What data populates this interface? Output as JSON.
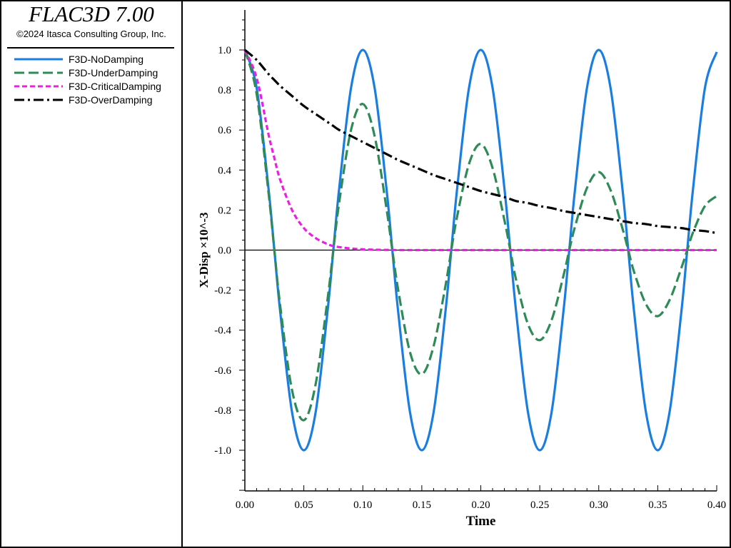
{
  "app": {
    "title": "FLAC3D 7.00",
    "copyright": "©2024 Itasca Consulting Group, Inc."
  },
  "chart_data": {
    "type": "line",
    "xlabel": "Time",
    "ylabel": "X-Disp ×10^-3",
    "xlim": [
      0,
      0.4
    ],
    "ylim": [
      -1.2,
      1.2
    ],
    "xticks": [
      "0.00",
      "0.05",
      "0.10",
      "0.15",
      "0.20",
      "0.25",
      "0.30",
      "0.35",
      "0.40"
    ],
    "yticks": [
      "1.0",
      "0.8",
      "0.6",
      "0.4",
      "0.2",
      "0.0",
      "-0.2",
      "-0.4",
      "-0.6",
      "-0.8",
      "-1.0"
    ],
    "grid": false,
    "legend_position": "left-panel",
    "x": [
      0,
      0.01,
      0.02,
      0.025,
      0.03,
      0.04,
      0.05,
      0.06,
      0.07,
      0.075,
      0.08,
      0.09,
      0.1,
      0.11,
      0.12,
      0.125,
      0.13,
      0.14,
      0.15,
      0.16,
      0.17,
      0.175,
      0.18,
      0.19,
      0.2,
      0.21,
      0.22,
      0.225,
      0.23,
      0.24,
      0.25,
      0.26,
      0.27,
      0.275,
      0.28,
      0.29,
      0.3,
      0.31,
      0.32,
      0.325,
      0.33,
      0.34,
      0.35,
      0.36,
      0.37,
      0.375,
      0.38,
      0.39,
      0.4
    ],
    "series": [
      {
        "name": "F3D-NoDamping",
        "color": "#1a7de0",
        "dash": "solid",
        "values": [
          1.0,
          0.81,
          0.31,
          0.0,
          -0.31,
          -0.81,
          -1.0,
          -0.81,
          -0.31,
          0.0,
          0.31,
          0.81,
          1.0,
          0.81,
          0.31,
          0.0,
          -0.31,
          -0.81,
          -1.0,
          -0.81,
          -0.31,
          0.0,
          0.31,
          0.81,
          1.0,
          0.81,
          0.31,
          0.0,
          -0.31,
          -0.81,
          -1.0,
          -0.81,
          -0.31,
          0.0,
          0.31,
          0.81,
          1.0,
          0.81,
          0.31,
          0.0,
          -0.31,
          -0.81,
          -1.0,
          -0.81,
          -0.31,
          0.0,
          0.31,
          0.81,
          0.99
        ]
      },
      {
        "name": "F3D-UnderDamping",
        "color": "#2e8b57",
        "dash": "long-dash",
        "values": [
          1.0,
          0.78,
          0.29,
          0.0,
          -0.28,
          -0.7,
          -0.85,
          -0.67,
          -0.25,
          0.0,
          0.24,
          0.6,
          0.73,
          0.57,
          0.21,
          0.0,
          -0.2,
          -0.51,
          -0.62,
          -0.48,
          -0.18,
          0.0,
          0.17,
          0.43,
          0.53,
          0.41,
          0.15,
          0.0,
          -0.15,
          -0.37,
          -0.45,
          -0.35,
          -0.13,
          0.0,
          0.12,
          0.31,
          0.39,
          0.3,
          0.11,
          0.0,
          -0.11,
          -0.27,
          -0.33,
          -0.25,
          -0.09,
          0.0,
          0.09,
          0.22,
          0.27
        ]
      },
      {
        "name": "F3D-CriticalDamping",
        "color": "#e820e0",
        "dash": "short-dash",
        "values": [
          1.0,
          0.86,
          0.58,
          0.46,
          0.35,
          0.2,
          0.11,
          0.06,
          0.03,
          0.02,
          0.015,
          0.008,
          0.004,
          0.002,
          0.001,
          0.001,
          0.0,
          0.0,
          0.0,
          0.0,
          0.0,
          0.0,
          0.0,
          0.0,
          0.0,
          0.0,
          0.0,
          0.0,
          0.0,
          0.0,
          0.0,
          0.0,
          0.0,
          0.0,
          0.0,
          0.0,
          0.0,
          0.0,
          0.0,
          0.0,
          0.0,
          0.0,
          0.0,
          0.0,
          0.0,
          0.0,
          0.0,
          0.0,
          0.0
        ]
      },
      {
        "name": "F3D-OverDamping",
        "color": "#000000",
        "dash": "dash-dot",
        "values": [
          1.0,
          0.95,
          0.88,
          0.85,
          0.82,
          0.77,
          0.72,
          0.68,
          0.64,
          0.62,
          0.6,
          0.57,
          0.54,
          0.51,
          0.48,
          0.465,
          0.45,
          0.425,
          0.4,
          0.375,
          0.355,
          0.345,
          0.335,
          0.315,
          0.295,
          0.28,
          0.265,
          0.255,
          0.245,
          0.235,
          0.22,
          0.21,
          0.195,
          0.19,
          0.185,
          0.175,
          0.165,
          0.155,
          0.145,
          0.14,
          0.135,
          0.13,
          0.12,
          0.115,
          0.11,
          0.105,
          0.1,
          0.095,
          0.085
        ]
      }
    ]
  }
}
